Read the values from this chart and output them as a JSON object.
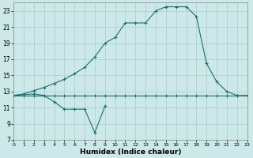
{
  "xlabel": "Humidex (Indice chaleur)",
  "bg_color": "#cce8e8",
  "grid_color": "#aacccc",
  "line_color": "#1a7070",
  "xlim": [
    0,
    23
  ],
  "ylim": [
    7,
    24
  ],
  "xticks": [
    0,
    1,
    2,
    3,
    4,
    5,
    6,
    7,
    8,
    9,
    10,
    11,
    12,
    13,
    14,
    15,
    16,
    17,
    18,
    19,
    20,
    21,
    22,
    23
  ],
  "yticks": [
    7,
    9,
    11,
    13,
    15,
    17,
    19,
    21,
    23
  ],
  "line1_x": [
    0,
    1,
    2,
    3,
    4,
    5,
    6,
    7,
    8,
    9,
    10,
    11,
    12,
    13,
    14,
    15,
    16,
    17,
    18,
    19,
    20,
    21,
    22,
    23
  ],
  "line1_y": [
    12.5,
    12.5,
    12.5,
    12.5,
    12.5,
    12.5,
    12.5,
    12.5,
    12.5,
    12.5,
    12.5,
    12.5,
    12.5,
    12.5,
    12.5,
    12.5,
    12.5,
    12.5,
    12.5,
    12.5,
    12.5,
    12.5,
    12.5,
    12.5
  ],
  "line2_x": [
    0,
    1,
    2,
    3,
    4,
    5,
    6,
    7,
    8,
    9,
    10,
    11,
    12,
    13,
    14,
    15,
    16,
    17,
    18,
    19,
    20,
    21,
    22,
    23
  ],
  "line2_y": [
    12.5,
    12.7,
    13.1,
    13.5,
    14.0,
    14.5,
    15.2,
    16.0,
    17.3,
    19.0,
    19.7,
    21.5,
    21.5,
    21.5,
    23.0,
    23.5,
    23.5,
    23.5,
    22.3,
    16.5,
    14.2,
    13.0,
    12.5,
    12.5
  ],
  "line3_x": [
    0,
    2,
    3,
    4,
    5,
    6,
    7,
    8,
    9
  ],
  "line3_y": [
    12.5,
    12.7,
    12.5,
    11.7,
    10.8,
    10.8,
    10.8,
    7.9,
    11.2
  ]
}
